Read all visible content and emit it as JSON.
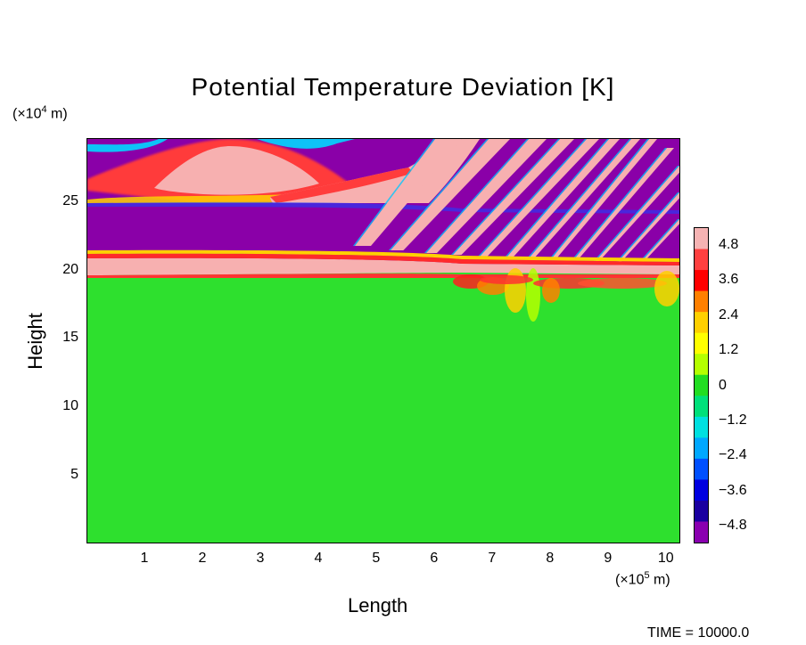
{
  "title": "Potential Temperature Deviation [K]",
  "timestamp": "TIME  =  10000.0",
  "chart_data": {
    "type": "heatmap",
    "title": "Potential Temperature Deviation [K]",
    "xlabel": "Length",
    "ylabel": "Height",
    "xunit_parts": [
      "(×10",
      "5",
      " m)"
    ],
    "yunit_parts": [
      "(×10",
      "4",
      " m)"
    ],
    "x_ticks": [
      "1",
      "2",
      "3",
      "4",
      "5",
      "6",
      "7",
      "8",
      "9",
      "10"
    ],
    "x_tick_values": [
      1,
      2,
      3,
      4,
      5,
      6,
      7,
      8,
      9,
      10
    ],
    "y_ticks": [
      "5",
      "10",
      "15",
      "20",
      "25"
    ],
    "y_tick_values": [
      5,
      10,
      15,
      20,
      25
    ],
    "xlim": [
      0,
      10.25
    ],
    "ylim": [
      0,
      29.6
    ],
    "colorbar": {
      "min": -5.4,
      "max": 5.4,
      "ticks": [
        "4.8",
        "3.6",
        "2.4",
        "1.2",
        "0",
        "−1.2",
        "−2.4",
        "−3.6",
        "−4.8"
      ],
      "tick_values": [
        4.8,
        3.6,
        2.4,
        1.2,
        0,
        -1.2,
        -2.4,
        -3.6,
        -4.8
      ],
      "colors_top_to_bottom": [
        "#f5b3b3",
        "#ff4040",
        "#ff0000",
        "#ff8000",
        "#ffd000",
        "#ffff00",
        "#b4ff00",
        "#22dd22",
        "#00e07a",
        "#00e0e0",
        "#00a8ff",
        "#0050ff",
        "#0000e0",
        "#1a00a0",
        "#8a00b0"
      ]
    },
    "field_description_values": {
      "lower_layer_deviation": 0,
      "layer_near_20_deviation": 4.8,
      "layer_near_23_deviation": -4.8,
      "layer_near_27_deviation": 4.8,
      "layer_top_deviation": -4.8
    },
    "grid": false
  }
}
